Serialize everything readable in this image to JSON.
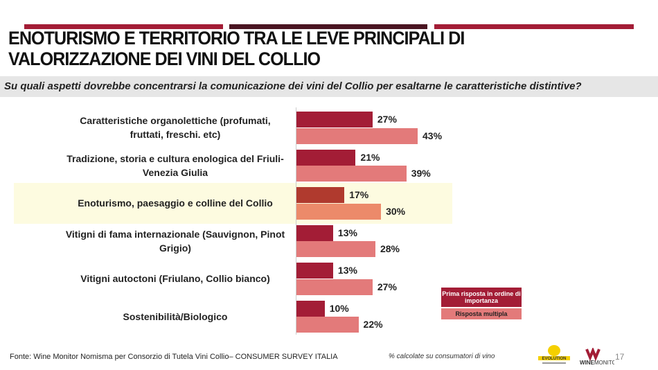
{
  "title": "ENOTURISMO E TERRITORIO TRA LE LEVE PRINCIPALI DI VALORIZZAZIONE DEI VINI DEL COLLIO",
  "question": "Su quali aspetti dovrebbe concentrarsi la comunicazione dei vini del Collio per esaltarne le caratteristiche distintive?",
  "colors": {
    "accent": "#a31d36",
    "dark_accent": "#4a1522",
    "primary": "#a31d36",
    "multiple": "#e37a7a",
    "highlight_primary": "#b03a2e",
    "highlight_multiple": "#ec8a6a",
    "highlight_bg": "#fdfbe0"
  },
  "chart_data": {
    "type": "bar",
    "orientation": "horizontal",
    "categories": [
      "Caratteristiche organolettiche (profumati, fruttati, freschi. etc)",
      "Tradizione, storia e cultura enologica del Friuli-Venezia Giulia",
      "Enoturismo, paesaggio e colline del Collio",
      "Vitigni di fama internazionale (Sauvignon, Pinot Grigio)",
      "Vitigni autoctoni (Friulano, Collio bianco)",
      "Sostenibilità/Biologico"
    ],
    "series": [
      {
        "name": "Prima risposta in ordine di importanza",
        "values": [
          27,
          21,
          17,
          13,
          13,
          10
        ],
        "labels": [
          "27%",
          "21%",
          "17%",
          "13%",
          "13%",
          "10%"
        ]
      },
      {
        "name": "Risposta multipla",
        "values": [
          43,
          39,
          30,
          28,
          27,
          22
        ],
        "labels": [
          "43%",
          "39%",
          "30%",
          "28%",
          "27%",
          "22%"
        ]
      }
    ],
    "highlighted_category": "Enoturismo, paesaggio e colline del Collio",
    "unit": "%",
    "legend": "bottom-right"
  },
  "source": "Fonte: Wine Monitor Nomisma per Consorzio di Tutela Vini Collio– CONSUMER SURVEY ITALIA",
  "note": "% calcolate su consumatori di vino",
  "logos": [
    "EVOLUTION",
    "WINEMONITOR Nomisma"
  ],
  "page_number": "17"
}
